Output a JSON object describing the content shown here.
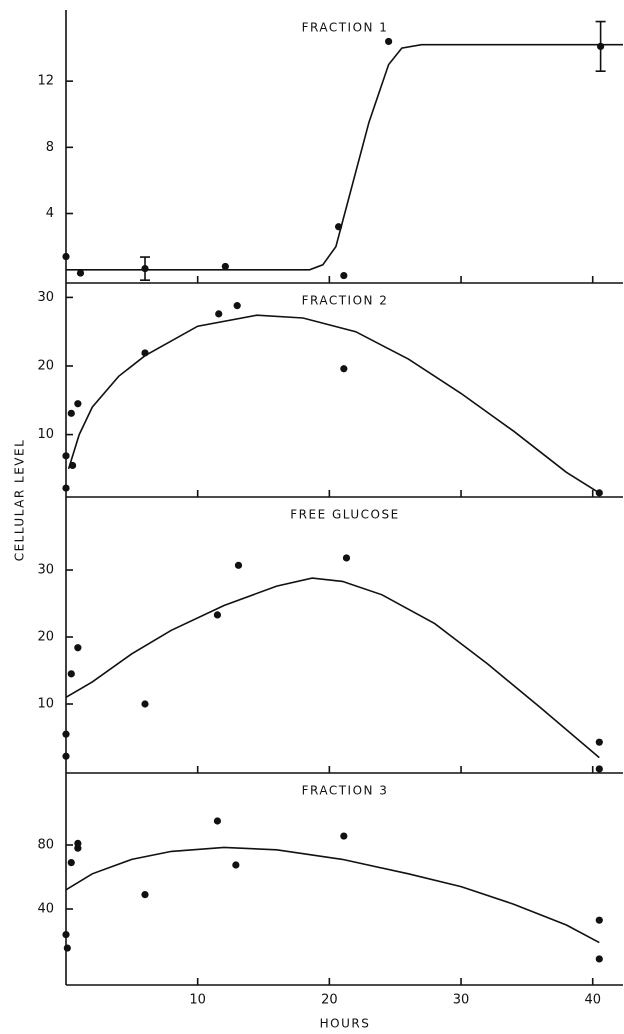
{
  "xlabel": "HOURS",
  "ylabel": "CELLULAR LEVEL",
  "xlim": [
    0,
    42.3
  ],
  "xticks": [
    10,
    20,
    30,
    40
  ],
  "chart_data": [
    {
      "type": "scatter",
      "title": "FRACTION 1",
      "ylim": [
        -0.2,
        16.3
      ],
      "yticks": [
        4,
        8,
        12
      ],
      "color": "#111111",
      "x": [
        0,
        1.1,
        6,
        12.1,
        20.7,
        21.1,
        24.5,
        40.6
      ],
      "values": [
        1.4,
        0.4,
        0.67,
        0.8,
        3.2,
        0.25,
        14.4,
        14.1
      ],
      "errors": [
        null,
        null,
        0.7,
        null,
        null,
        null,
        null,
        1.5
      ],
      "curve": {
        "x": [
          0,
          18.5,
          19.5,
          20.5,
          21.5,
          23,
          24.5,
          25.5,
          27,
          42.3
        ],
        "values": [
          0.6,
          0.6,
          0.9,
          2,
          5,
          9.5,
          13,
          14,
          14.2,
          14.2
        ]
      }
    },
    {
      "type": "scatter",
      "title": "FRACTION 2",
      "ylim": [
        0.9,
        32.1
      ],
      "yticks": [
        10,
        20,
        30
      ],
      "color": "#111111",
      "x": [
        0,
        0,
        0.5,
        0.4,
        0.9,
        6,
        11.6,
        13,
        21.1,
        40.5
      ],
      "values": [
        2.2,
        6.9,
        5.5,
        13.1,
        14.5,
        21.9,
        27.6,
        28.8,
        19.6,
        1.5
      ],
      "curve": {
        "x": [
          0.2,
          1,
          2,
          4,
          6,
          10,
          14.5,
          18,
          22,
          26,
          30,
          34,
          38,
          40.5
        ],
        "values": [
          5,
          10,
          14,
          18.5,
          21.5,
          25.8,
          27.4,
          27,
          25,
          21,
          16,
          10.5,
          4.5,
          1.5
        ]
      }
    },
    {
      "type": "scatter",
      "title": "FREE GLUCOSE",
      "ylim": [
        -0.3,
        40.9
      ],
      "yticks": [
        10,
        20,
        30
      ],
      "color": "#111111",
      "x": [
        0,
        0,
        0.4,
        0.9,
        6,
        11.5,
        13.1,
        21.3,
        40.5,
        40.5
      ],
      "values": [
        5.5,
        2.2,
        14.5,
        18.4,
        10,
        23.3,
        30.7,
        31.8,
        4.3,
        0.3
      ],
      "curve": {
        "x": [
          0,
          2,
          5,
          8,
          12,
          16,
          18.7,
          21,
          24,
          28,
          32,
          36,
          40.5
        ],
        "values": [
          11,
          13.3,
          17.5,
          21,
          24.7,
          27.6,
          28.8,
          28.3,
          26.3,
          22,
          16,
          9.5,
          2
        ]
      }
    },
    {
      "type": "scatter",
      "title": "FRACTION 3",
      "ylim": [
        -7.5,
        125
      ],
      "yticks": [
        40,
        80
      ],
      "color": "#111111",
      "x": [
        0,
        0.1,
        0.4,
        0.9,
        0.9,
        6,
        11.5,
        12.9,
        21.1,
        40.5,
        40.5
      ],
      "values": [
        24,
        15.6,
        69,
        81,
        78,
        49,
        95,
        67.5,
        85.6,
        33,
        8.8
      ],
      "curve": {
        "x": [
          0,
          2,
          5,
          8,
          12,
          16,
          21,
          26,
          30,
          34,
          38,
          40.5
        ],
        "values": [
          52,
          62,
          71,
          76,
          78.5,
          77,
          71,
          62,
          54,
          43,
          30,
          19
        ]
      }
    }
  ]
}
